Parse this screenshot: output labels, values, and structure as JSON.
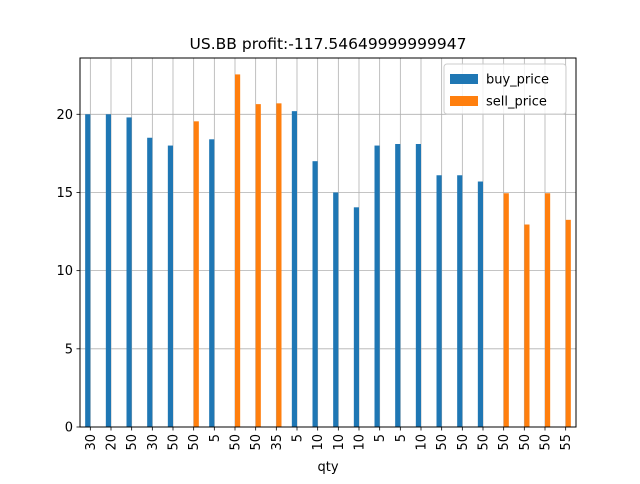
{
  "chart_data": {
    "type": "bar",
    "title": "US.BB  profit:-117.54649999999947",
    "xlabel": "qty",
    "ylabel": "",
    "categories": [
      "30",
      "20",
      "50",
      "30",
      "50",
      "50",
      "5",
      "50",
      "50",
      "35",
      "5",
      "10",
      "10",
      "10",
      "5",
      "5",
      "10",
      "50",
      "50",
      "50",
      "50",
      "50",
      "50",
      "55"
    ],
    "ylim": [
      0,
      23.6
    ],
    "yticks": [
      0,
      5,
      10,
      15,
      20
    ],
    "grid": true,
    "legend_position": "upper right",
    "series": [
      {
        "name": "buy_price",
        "color": "#1f77b4",
        "values": [
          20.0,
          20.0,
          19.8,
          18.5,
          18.0,
          null,
          18.4,
          null,
          null,
          null,
          20.2,
          17.0,
          15.0,
          14.05,
          18.0,
          18.1,
          18.1,
          16.1,
          16.1,
          15.7,
          null,
          null,
          null,
          null
        ]
      },
      {
        "name": "sell_price",
        "color": "#ff7f0e",
        "values": [
          null,
          null,
          null,
          null,
          null,
          19.55,
          null,
          22.55,
          20.65,
          20.7,
          null,
          null,
          null,
          null,
          null,
          null,
          null,
          null,
          null,
          null,
          14.95,
          12.95,
          14.95,
          13.25
        ]
      }
    ]
  }
}
